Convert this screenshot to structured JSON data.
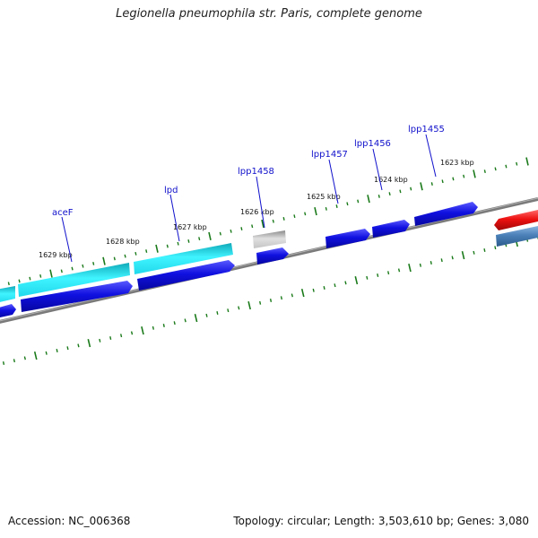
{
  "header": {
    "title": "Legionella pneumophila str. Paris, complete genome"
  },
  "footer": {
    "accession": "Accession: NC_006368",
    "info": "Topology: circular; Length: 3,503,610 bp; Genes: 3,080"
  },
  "map": {
    "kbp_labels": [
      "1629 kbp",
      "1628 kbp",
      "1627 kbp",
      "1626 kbp",
      "1625 kbp",
      "1624 kbp",
      "1623 kbp"
    ],
    "gene_labels": [
      "aceF",
      "lpd",
      "lpp1458",
      "lpp1457",
      "lpp1456",
      "lpp1455"
    ],
    "colors": {
      "forward_cds": "#1010e0",
      "cyan_feature": "#22e0f0",
      "gray_feature": "#b8b8b8",
      "red_feature": "#ee1111",
      "steelblue_feature": "#4a80b8",
      "backbone": "#808080",
      "tick": "#1a7a1a",
      "gene_label": "#1111cc"
    }
  }
}
